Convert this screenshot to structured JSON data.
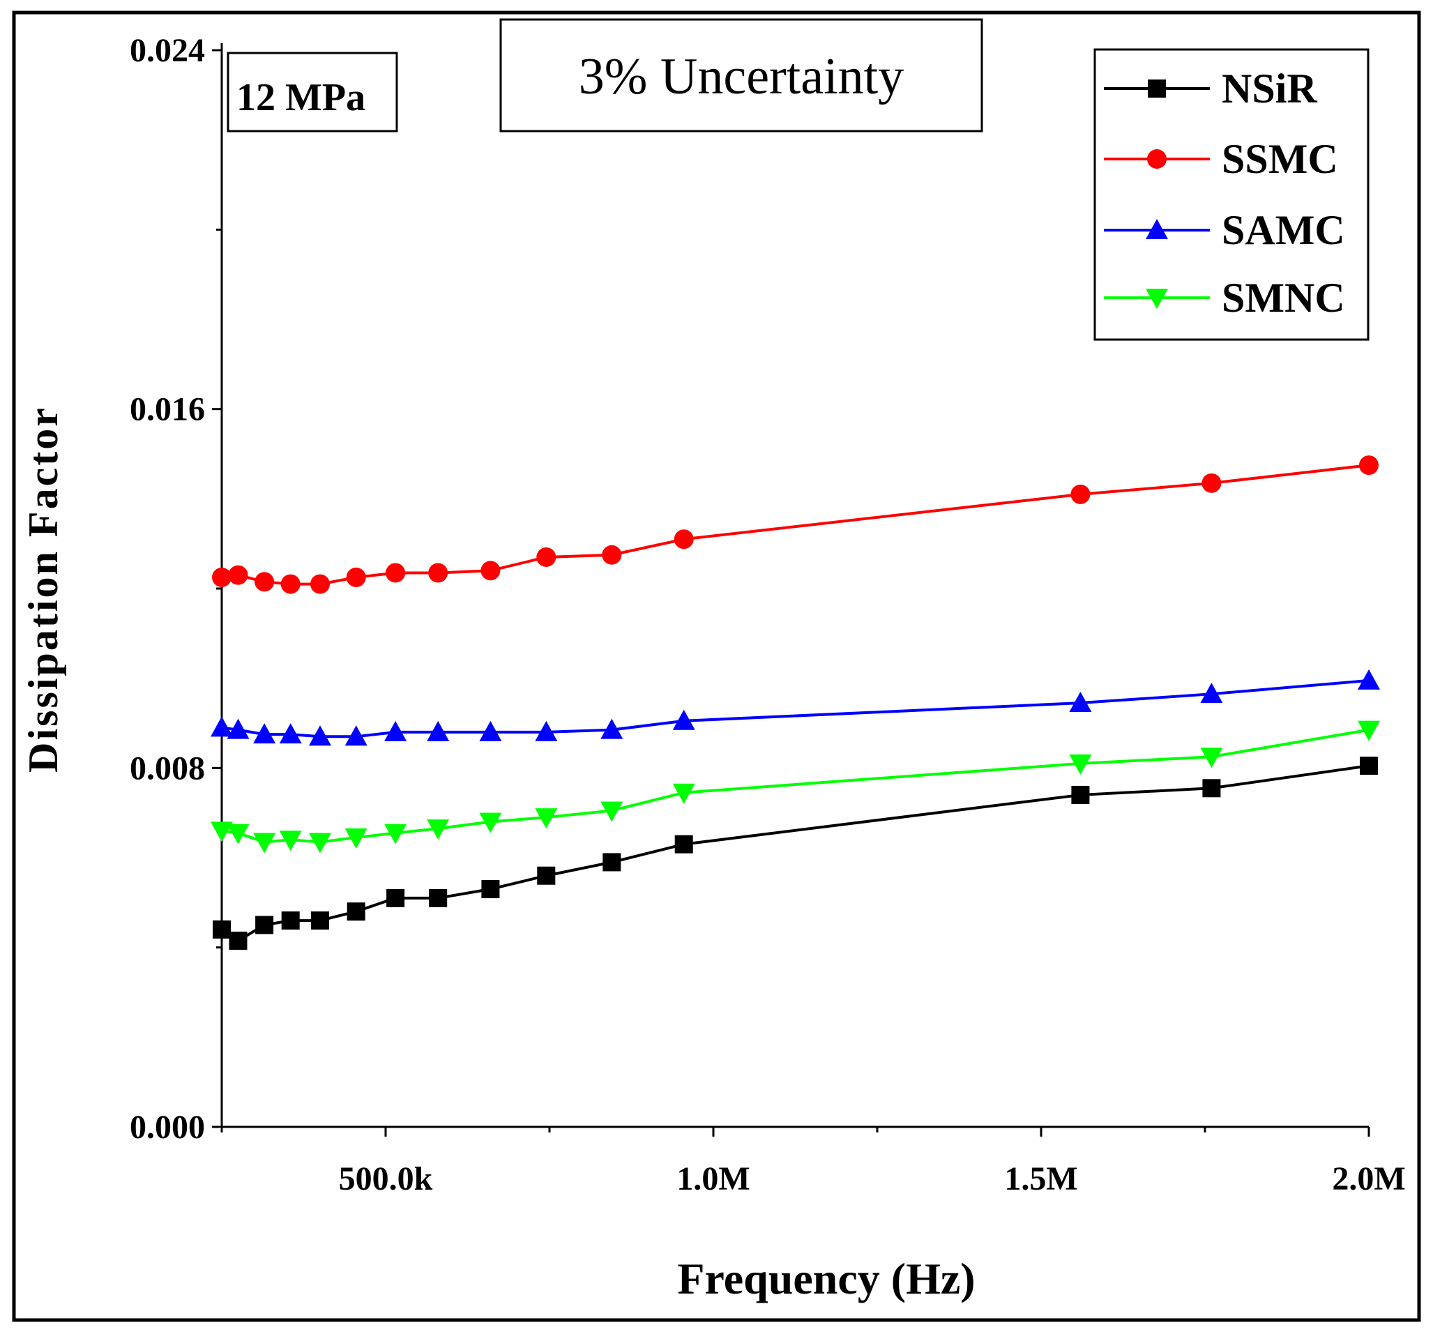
{
  "chart_data": {
    "type": "line",
    "title": "",
    "xlabel": "Frequency (Hz)",
    "ylabel": "Dissipation Factor",
    "xlim": [
      250000,
      2000000
    ],
    "ylim": [
      0,
      0.024
    ],
    "x_ticks": [
      {
        "value": 500000,
        "label": "500.0k"
      },
      {
        "value": 1000000,
        "label": "1.0M"
      },
      {
        "value": 1500000,
        "label": "1.5M"
      },
      {
        "value": 2000000,
        "label": "2.0M"
      }
    ],
    "x_minor_ticks": [
      250000,
      750000,
      1250000,
      1750000
    ],
    "y_ticks": [
      {
        "value": 0,
        "label": "0.000"
      },
      {
        "value": 0.008,
        "label": "0.008"
      },
      {
        "value": 0.016,
        "label": "0.016"
      },
      {
        "value": 0.024,
        "label": "0.024"
      }
    ],
    "y_minor_ticks": [
      0.004,
      0.012,
      0.02
    ],
    "annotations": {
      "pressure": "12 MPa",
      "uncertainty": "3% Uncertainty"
    },
    "legend_position": "top-right",
    "x": [
      250000,
      275000,
      315000,
      355000,
      400000,
      455000,
      515000,
      580000,
      660000,
      745000,
      845000,
      955000,
      1560000,
      1760000,
      2000000
    ],
    "series": [
      {
        "name": "NSiR",
        "color": "#000000",
        "marker": "square",
        "values": [
          0.0044,
          0.00415,
          0.0045,
          0.0046,
          0.0046,
          0.0048,
          0.0051,
          0.0051,
          0.0053,
          0.0056,
          0.0059,
          0.0063,
          0.0074,
          0.00755,
          0.00805
        ]
      },
      {
        "name": "SSMC",
        "color": "#ff0000",
        "marker": "circle",
        "values": [
          0.01225,
          0.0123,
          0.01215,
          0.0121,
          0.0121,
          0.01225,
          0.01235,
          0.01235,
          0.0124,
          0.0127,
          0.01275,
          0.0131,
          0.0141,
          0.01435,
          0.01475
        ]
      },
      {
        "name": "SAMC",
        "color": "#0000ff",
        "marker": "triangle-up",
        "values": [
          0.0089,
          0.00885,
          0.00875,
          0.00875,
          0.0087,
          0.0087,
          0.0088,
          0.0088,
          0.0088,
          0.0088,
          0.00885,
          0.00905,
          0.00945,
          0.00965,
          0.00995
        ]
      },
      {
        "name": "SMNC",
        "color": "#00ff00",
        "marker": "triangle-down",
        "values": [
          0.0066,
          0.00655,
          0.00635,
          0.0064,
          0.00635,
          0.00645,
          0.00655,
          0.00665,
          0.0068,
          0.0069,
          0.00705,
          0.00745,
          0.0081,
          0.00825,
          0.00885
        ]
      }
    ]
  }
}
